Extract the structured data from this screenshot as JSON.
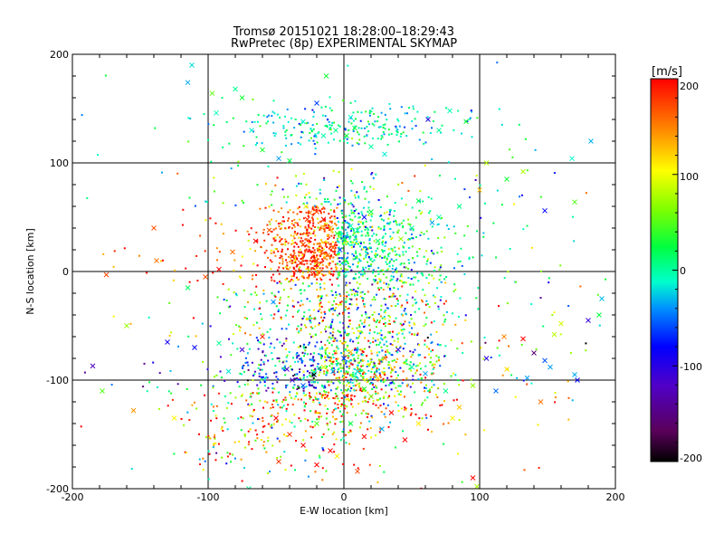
{
  "chart_data": {
    "type": "scatter",
    "title": "Tromsø 20151021 18:28:00–18:29:43",
    "subtitle": "RwPretec (8p) EXPERIMENTAL SKYMAP",
    "xlabel": "E-W location [km]",
    "ylabel": "N-S location [km]",
    "xlim": [
      -200,
      200
    ],
    "ylim": [
      -200,
      200
    ],
    "xticks": [
      "-200",
      "-100",
      "0",
      "100",
      "200"
    ],
    "yticks": [
      "-200",
      "-100",
      "0",
      "100",
      "200"
    ],
    "grid": true,
    "colorbar": {
      "label": "[m/s]",
      "range": [
        -200,
        200
      ],
      "ticks": [
        "200",
        "100",
        "0",
        "-100",
        "-200"
      ],
      "colormap": "rainbow (black → purple → blue → cyan → green → yellow → red)"
    },
    "series": [
      {
        "marker": "x",
        "points": [
          [
            -112,
            190
          ],
          [
            -115,
            174
          ],
          [
            -97,
            164
          ],
          [
            -94,
            146
          ],
          [
            -80,
            168
          ],
          [
            -75,
            160
          ],
          [
            -68,
            130
          ],
          [
            -60,
            112
          ],
          [
            -48,
            104
          ],
          [
            -40,
            102
          ],
          [
            -20,
            155
          ],
          [
            -13,
            180
          ],
          [
            -6,
            130
          ],
          [
            2,
            125
          ],
          [
            8,
            132
          ],
          [
            20,
            115
          ],
          [
            30,
            108
          ],
          [
            5,
            142
          ],
          [
            -30,
            138
          ],
          [
            -15,
            125
          ],
          [
            62,
            140
          ],
          [
            70,
            130
          ],
          [
            78,
            148
          ],
          [
            90,
            138
          ],
          [
            105,
            100
          ],
          [
            132,
            92
          ],
          [
            168,
            104
          ],
          [
            170,
            64
          ],
          [
            182,
            120
          ],
          [
            148,
            56
          ],
          [
            120,
            85
          ],
          [
            100,
            75
          ],
          [
            85,
            60
          ],
          [
            70,
            50
          ],
          [
            65,
            45
          ],
          [
            50,
            40
          ],
          [
            42,
            30
          ],
          [
            55,
            65
          ],
          [
            -28,
            60
          ],
          [
            -25,
            54
          ],
          [
            -27,
            48
          ],
          [
            -20,
            55
          ],
          [
            -15,
            48
          ],
          [
            -10,
            40
          ],
          [
            -5,
            35
          ],
          [
            0,
            30
          ],
          [
            -30,
            25
          ],
          [
            -38,
            14
          ],
          [
            -32,
            8
          ],
          [
            -20,
            10
          ],
          [
            -12,
            15
          ],
          [
            -8,
            22
          ],
          [
            -3,
            20
          ],
          [
            5,
            42
          ],
          [
            10,
            38
          ],
          [
            15,
            50
          ],
          [
            20,
            55
          ],
          [
            25,
            28
          ],
          [
            -55,
            38
          ],
          [
            -65,
            28
          ],
          [
            -82,
            18
          ],
          [
            -92,
            2
          ],
          [
            -185,
            -87
          ],
          [
            -178,
            -110
          ],
          [
            -175,
            -3
          ],
          [
            -160,
            -50
          ],
          [
            -155,
            -128
          ],
          [
            -140,
            40
          ],
          [
            -138,
            10
          ],
          [
            -130,
            -65
          ],
          [
            -125,
            -135
          ],
          [
            -115,
            -15
          ],
          [
            -110,
            -70
          ],
          [
            -92,
            -66
          ],
          [
            -85,
            -92
          ],
          [
            -102,
            -5
          ],
          [
            -75,
            -72
          ],
          [
            -60,
            -60
          ],
          [
            -52,
            -28
          ],
          [
            -42,
            -90
          ],
          [
            -38,
            -100
          ],
          [
            -30,
            -105
          ],
          [
            -22,
            -95
          ],
          [
            -15,
            -88
          ],
          [
            -8,
            -92
          ],
          [
            0,
            -80
          ],
          [
            5,
            -74
          ],
          [
            10,
            -92
          ],
          [
            15,
            -108
          ],
          [
            20,
            -115
          ],
          [
            25,
            -98
          ],
          [
            30,
            -80
          ],
          [
            40,
            -72
          ],
          [
            50,
            -88
          ],
          [
            60,
            -94
          ],
          [
            75,
            -110
          ],
          [
            85,
            -125
          ],
          [
            95,
            -105
          ],
          [
            105,
            -80
          ],
          [
            -50,
            -135
          ],
          [
            -40,
            -150
          ],
          [
            -30,
            -160
          ],
          [
            -20,
            -178
          ],
          [
            -10,
            -165
          ],
          [
            5,
            -140
          ],
          [
            15,
            -152
          ],
          [
            28,
            -145
          ],
          [
            35,
            -130
          ],
          [
            45,
            -155
          ],
          [
            55,
            -140
          ],
          [
            80,
            -135
          ],
          [
            95,
            -190
          ],
          [
            98,
            -198
          ],
          [
            10,
            -184
          ],
          [
            -5,
            -170
          ],
          [
            -20,
            -140
          ],
          [
            -48,
            -175
          ],
          [
            -70,
            -200
          ],
          [
            118,
            -60
          ],
          [
            132,
            -62
          ],
          [
            140,
            -75
          ],
          [
            148,
            -82
          ],
          [
            152,
            -88
          ],
          [
            160,
            -48
          ],
          [
            155,
            -58
          ],
          [
            170,
            -95
          ],
          [
            180,
            -45
          ],
          [
            190,
            -25
          ],
          [
            188,
            -40
          ],
          [
            172,
            -100
          ],
          [
            145,
            -120
          ],
          [
            135,
            -98
          ],
          [
            120,
            -90
          ],
          [
            112,
            -110
          ]
        ]
      },
      {
        "marker": "dot",
        "note": "several thousand small colored points forming a dense central cloud around (-20..40, -110..60) km plus a diffuse halo; colors encode Doppler velocity on the colorbar scale"
      }
    ]
  }
}
